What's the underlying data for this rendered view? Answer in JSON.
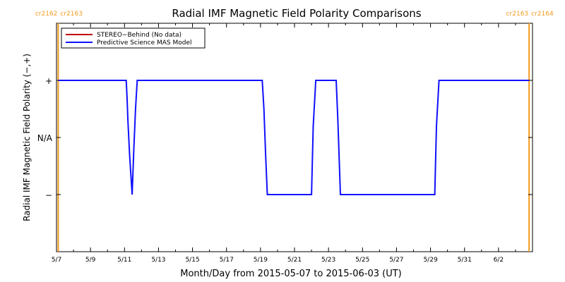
{
  "chart_data": {
    "type": "line",
    "title": "Radial IMF Magnetic Field Polarity Comparisons",
    "xlabel": "Month/Day from 2015-05-07 to 2015-06-03 (UT)",
    "ylabel": "Radial IMF Magnetic Field Polarity (−,+)",
    "x_ticks": [
      "5/7",
      "5/9",
      "5/11",
      "5/13",
      "5/15",
      "5/17",
      "5/19",
      "5/21",
      "5/23",
      "5/25",
      "5/27",
      "5/29",
      "5/31",
      "6/2"
    ],
    "x_tick_days": [
      0,
      2,
      4,
      6,
      8,
      10,
      12,
      14,
      16,
      18,
      20,
      22,
      24,
      26
    ],
    "xlim_days": [
      0,
      28
    ],
    "y_ticks": [
      {
        "label": "+",
        "value": 1
      },
      {
        "label": "N/A",
        "value": 0
      },
      {
        "label": "−",
        "value": -1
      }
    ],
    "ylim": [
      -2,
      2
    ],
    "carrington_markers": [
      {
        "day": 0.1,
        "label_left": "cr2162",
        "label_right": "cr2163",
        "color": "#f39a1e"
      },
      {
        "day": 27.8,
        "label_left": "cr2163",
        "label_right": "cr2164",
        "color": "#f39a1e"
      }
    ],
    "legend": {
      "position": "top-left",
      "items": [
        {
          "label": "STEREO−Behind (No data)",
          "color": "#c00000"
        },
        {
          "label": "Predictive Science MAS Model",
          "color": "#1010ff"
        }
      ]
    },
    "series": [
      {
        "name": "Predictive Science MAS Model",
        "color": "#1010ff",
        "points": [
          [
            0.1,
            1
          ],
          [
            4.1,
            1
          ],
          [
            4.15,
            0.7
          ],
          [
            4.2,
            0.3
          ],
          [
            4.3,
            -0.3
          ],
          [
            4.45,
            -1
          ],
          [
            4.55,
            -0.2
          ],
          [
            4.65,
            0.5
          ],
          [
            4.75,
            1
          ],
          [
            12.1,
            1
          ],
          [
            12.2,
            0.5
          ],
          [
            12.3,
            -0.3
          ],
          [
            12.4,
            -1
          ],
          [
            15.0,
            -1
          ],
          [
            15.1,
            0.2
          ],
          [
            15.25,
            1
          ],
          [
            16.45,
            1
          ],
          [
            16.55,
            0.3
          ],
          [
            16.7,
            -1
          ],
          [
            22.25,
            -1
          ],
          [
            22.35,
            0.2
          ],
          [
            22.5,
            1
          ],
          [
            27.8,
            1
          ]
        ]
      },
      {
        "name": "STEREO−Behind (No data)",
        "color": "#c00000",
        "points": []
      }
    ]
  }
}
